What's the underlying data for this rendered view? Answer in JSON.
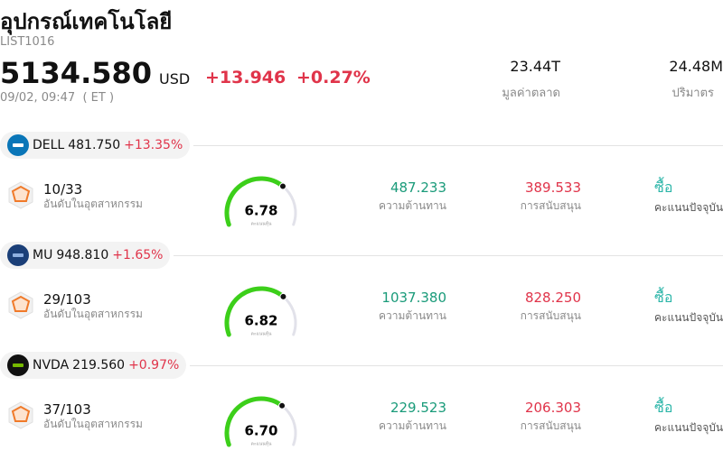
{
  "header": {
    "title": "อุปกรณ์เทคโนโลยี",
    "code": "LIST1016",
    "price": "5134.580",
    "currency": "USD",
    "change": "+13.946",
    "change_pct": "+0.27%",
    "time": "09/02, 09:47  ( ET )",
    "market_cap": "23.44T",
    "market_cap_label": "มูลค่าตลาด",
    "volume": "24.48M",
    "volume_label": "ปริมาตร"
  },
  "gauge_range": [
    0,
    10
  ],
  "stocks": [
    {
      "ticker": "DELL",
      "price": "481.750",
      "change": "+13.35%",
      "rank": "10/33",
      "rank_label": "อันดับในอุตสาหกรรม",
      "score": {
        "value": 6.78,
        "label": "6.78"
      },
      "score_label": "คะแนนหุ้น",
      "resistance": "487.233",
      "resistance_label": "ความต้านทาน",
      "support": "389.533",
      "support_label": "การสนับสนุน",
      "signal": "ซื้อ",
      "signal_label": "คะแนนปัจจุบัน"
    },
    {
      "ticker": "MU",
      "price": "948.810",
      "change": "+1.65%",
      "rank": "29/103",
      "rank_label": "อันดับในอุตสาหกรรม",
      "score": {
        "value": 6.82,
        "label": "6.82"
      },
      "score_label": "คะแนนหุ้น",
      "resistance": "1037.380",
      "resistance_label": "ความต้านทาน",
      "support": "828.250",
      "support_label": "การสนับสนุน",
      "signal": "ซื้อ",
      "signal_label": "คะแนนปัจจุบัน"
    },
    {
      "ticker": "NVDA",
      "price": "219.560",
      "change": "+0.97%",
      "rank": "37/103",
      "rank_label": "อันดับในอุตสาหกรรม",
      "score": {
        "value": 6.7,
        "label": "6.70"
      },
      "score_label": "คะแนนหุ้น",
      "resistance": "229.523",
      "resistance_label": "ความต้านทาน",
      "support": "206.303",
      "support_label": "การสนับสนุน",
      "signal": "ซื้อ",
      "signal_label": "คะแนนปัจจุบัน"
    }
  ]
}
